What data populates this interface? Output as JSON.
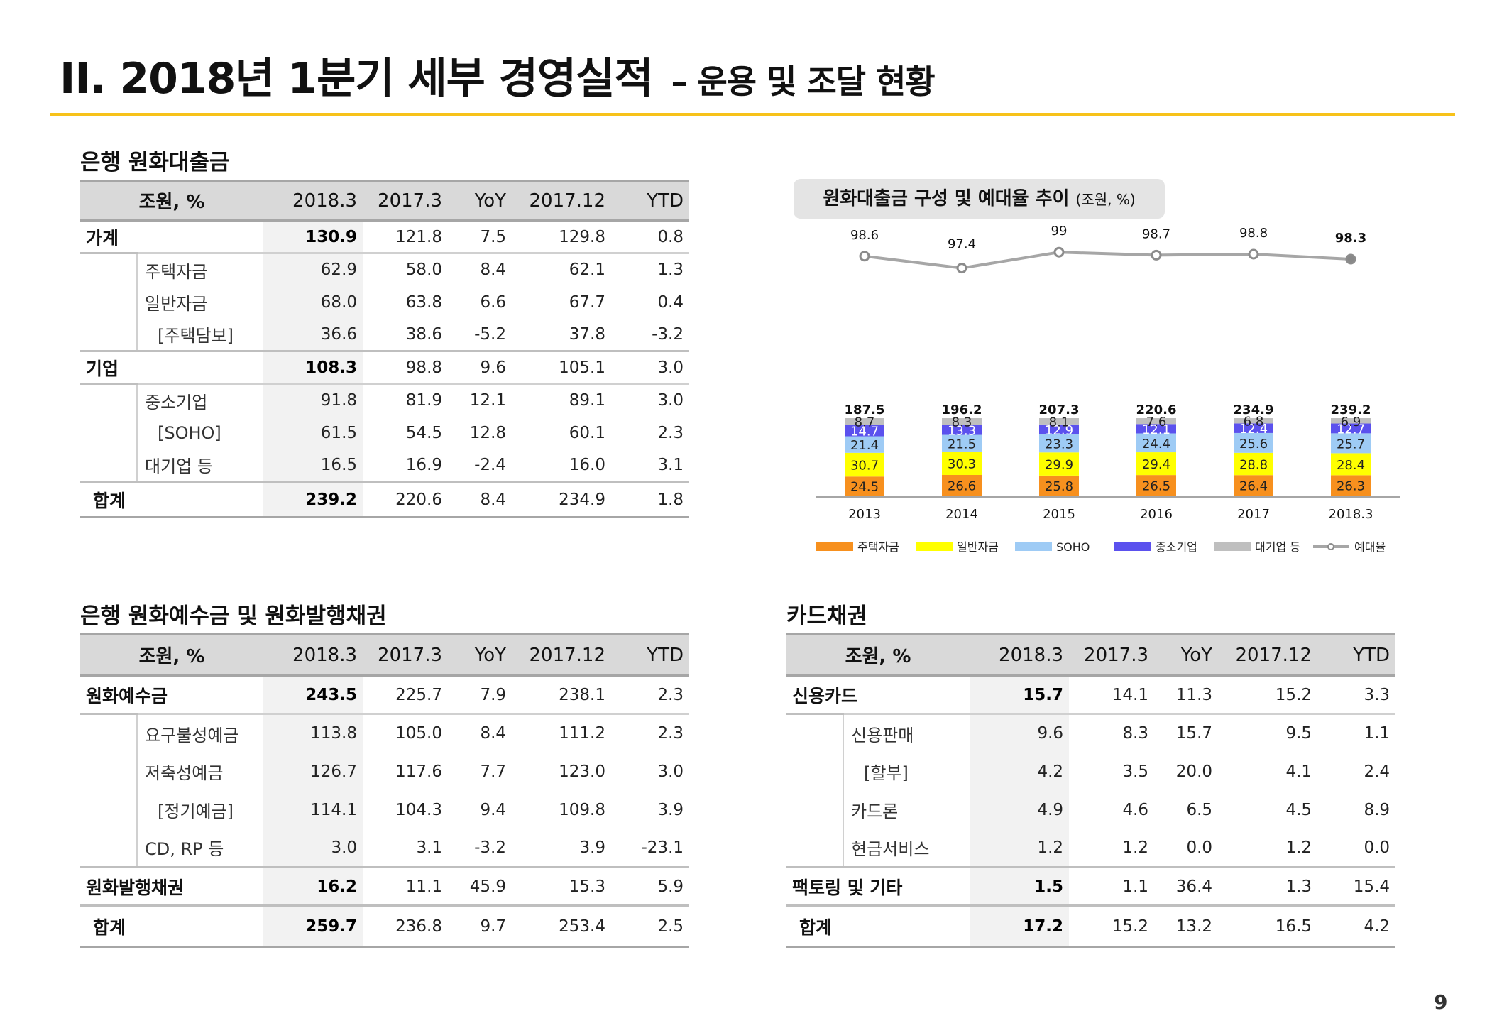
{
  "title": {
    "main": "II. 2018년 1분기 세부 경영실적",
    "sub": "– 운용 및 조달 현황"
  },
  "page_number": "9",
  "loans": {
    "section_title": "은행 원화대출금",
    "headers": [
      "조원, %",
      "2018.3",
      "2017.3",
      "YoY",
      "2017.12",
      "YTD"
    ],
    "groups": [
      {
        "label": "가계",
        "values": [
          "130.9",
          "121.8",
          "7.5",
          "129.8",
          "0.8"
        ],
        "rows": [
          {
            "label": "주택자금",
            "values": [
              "62.9",
              "58.0",
              "8.4",
              "62.1",
              "1.3"
            ]
          },
          {
            "label": "일반자금",
            "values": [
              "68.0",
              "63.8",
              "6.6",
              "67.7",
              "0.4"
            ]
          },
          {
            "label": "[주택담보]",
            "values": [
              "36.6",
              "38.6",
              "-5.2",
              "37.8",
              "-3.2"
            ]
          }
        ]
      },
      {
        "label": "기업",
        "values": [
          "108.3",
          "98.8",
          "9.6",
          "105.1",
          "3.0"
        ],
        "rows": [
          {
            "label": "중소기업",
            "values": [
              "91.8",
              "81.9",
              "12.1",
              "89.1",
              "3.0"
            ]
          },
          {
            "label": "[SOHO]",
            "values": [
              "61.5",
              "54.5",
              "12.8",
              "60.1",
              "2.3"
            ]
          },
          {
            "label": "대기업 등",
            "values": [
              "16.5",
              "16.9",
              "-2.4",
              "16.0",
              "3.1"
            ]
          }
        ]
      }
    ],
    "total": {
      "label": "합계",
      "values": [
        "239.2",
        "220.6",
        "8.4",
        "234.9",
        "1.8"
      ]
    }
  },
  "deposits": {
    "section_title": "은행 원화예수금 및 원화발행채권",
    "headers": [
      "조원, %",
      "2018.3",
      "2017.3",
      "YoY",
      "2017.12",
      "YTD"
    ],
    "groups": [
      {
        "label": "원화예수금",
        "values": [
          "243.5",
          "225.7",
          "7.9",
          "238.1",
          "2.3"
        ],
        "rows": [
          {
            "label": "요구불성예금",
            "values": [
              "113.8",
              "105.0",
              "8.4",
              "111.2",
              "2.3"
            ]
          },
          {
            "label": "저축성예금",
            "values": [
              "126.7",
              "117.6",
              "7.7",
              "123.0",
              "3.0"
            ]
          },
          {
            "label": "[정기예금]",
            "values": [
              "114.1",
              "104.3",
              "9.4",
              "109.8",
              "3.9"
            ]
          },
          {
            "label": "CD, RP 등",
            "values": [
              "3.0",
              "3.1",
              "-3.2",
              "3.9",
              "-23.1"
            ]
          }
        ]
      },
      {
        "label": "원화발행채권",
        "values": [
          "16.2",
          "11.1",
          "45.9",
          "15.3",
          "5.9"
        ],
        "rows": []
      }
    ],
    "total": {
      "label": "합계",
      "values": [
        "259.7",
        "236.8",
        "9.7",
        "253.4",
        "2.5"
      ]
    }
  },
  "cards": {
    "section_title": "카드채권",
    "headers": [
      "조원, %",
      "2018.3",
      "2017.3",
      "YoY",
      "2017.12",
      "YTD"
    ],
    "groups": [
      {
        "label": "신용카드",
        "values": [
          "15.7",
          "14.1",
          "11.3",
          "15.2",
          "3.3"
        ],
        "rows": [
          {
            "label": "신용판매",
            "values": [
              "9.6",
              "8.3",
              "15.7",
              "9.5",
              "1.1"
            ]
          },
          {
            "label": "[할부]",
            "values": [
              "4.2",
              "3.5",
              "20.0",
              "4.1",
              "2.4"
            ]
          },
          {
            "label": "카드론",
            "values": [
              "4.9",
              "4.6",
              "6.5",
              "4.5",
              "8.9"
            ]
          },
          {
            "label": "현금서비스",
            "values": [
              "1.2",
              "1.2",
              "0.0",
              "1.2",
              "0.0"
            ]
          }
        ]
      },
      {
        "label": "팩토링 및 기타",
        "values": [
          "1.5",
          "1.1",
          "36.4",
          "1.3",
          "15.4"
        ],
        "rows": []
      }
    ],
    "total": {
      "label": "합계",
      "values": [
        "17.2",
        "15.2",
        "13.2",
        "16.5",
        "4.2"
      ]
    }
  },
  "chart_data": {
    "type": "bar",
    "title": "원화대출금 구성 및 예대율 추이",
    "unit": "(조원, %)",
    "categories": [
      "2013",
      "2014",
      "2015",
      "2016",
      "2017",
      "2018.3"
    ],
    "totals": [
      "187.5",
      "196.2",
      "207.3",
      "220.6",
      "234.9",
      "239.2"
    ],
    "series": [
      {
        "name": "주택자금",
        "color": "#f7901e",
        "values": [
          24.5,
          26.6,
          25.8,
          26.5,
          26.4,
          26.3
        ]
      },
      {
        "name": "일반자금",
        "color": "#ffff00",
        "values": [
          30.7,
          30.3,
          29.9,
          29.4,
          28.8,
          28.4
        ]
      },
      {
        "name": "SOHO",
        "color": "#9ecbf5",
        "values": [
          21.4,
          21.5,
          23.3,
          24.4,
          25.6,
          25.7
        ]
      },
      {
        "name": "중소기업",
        "color": "#5b51ee",
        "values": [
          14.7,
          13.3,
          12.9,
          12.1,
          12.4,
          12.7
        ]
      },
      {
        "name": "대기업 등",
        "color": "#bfbfbf",
        "values": [
          8.7,
          8.3,
          8.1,
          7.6,
          6.8,
          6.9
        ]
      }
    ],
    "line": {
      "name": "예대율",
      "color": "#a6a6a6",
      "values": [
        98.6,
        97.4,
        99.0,
        98.7,
        98.8,
        98.3
      ]
    },
    "legend_position": "bottom"
  }
}
